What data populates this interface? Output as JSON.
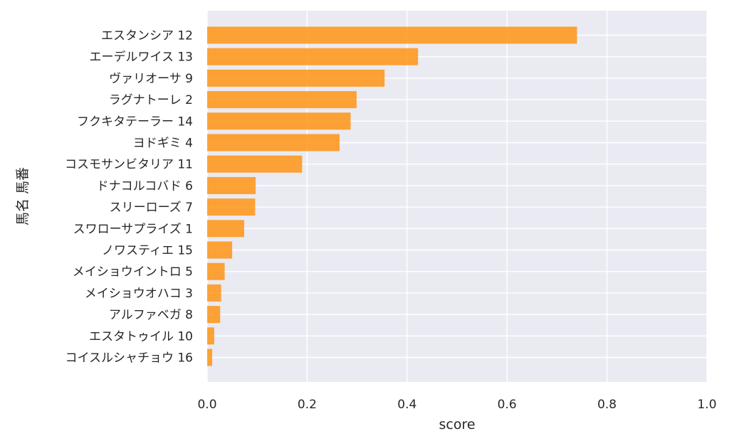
{
  "chart_data": {
    "type": "bar",
    "orientation": "horizontal",
    "categories": [
      "エスタンシア 12",
      "エーデルワイス 13",
      "ヴァリオーサ 9",
      "ラグナトーレ 2",
      "フクキタテーラー 14",
      "ヨドギミ 4",
      "コスモサンビタリア 11",
      "ドナコルコバド 6",
      "スリーローズ 7",
      "スワローサプライズ 1",
      "ノワスティエ 15",
      "メイショウイントロ 5",
      "メイショウオハコ 3",
      "アルファベガ 8",
      "エスタトゥイル 10",
      "コイスルシャチョウ 16"
    ],
    "values": [
      0.74,
      0.422,
      0.355,
      0.299,
      0.287,
      0.265,
      0.19,
      0.097,
      0.096,
      0.074,
      0.05,
      0.035,
      0.028,
      0.026,
      0.014,
      0.01
    ],
    "xlabel": "score",
    "ylabel": "馬名 馬番",
    "xlim": [
      0,
      1.0
    ],
    "xticks": [
      "0.0",
      "0.2",
      "0.4",
      "0.6",
      "0.8",
      "1.0"
    ],
    "grid": true,
    "bar_color": "#ff8c00",
    "background_color": "#eaeaf2"
  }
}
